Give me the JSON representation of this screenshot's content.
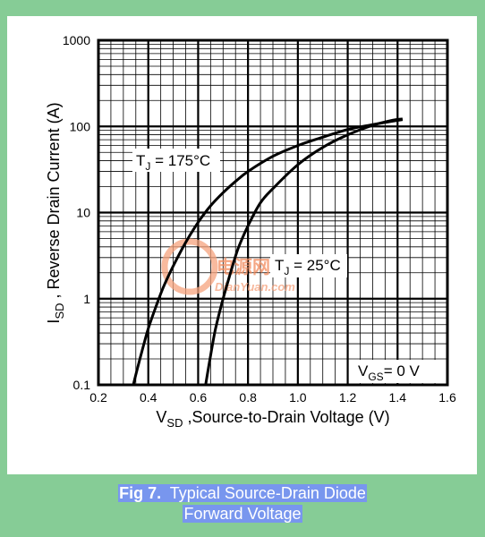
{
  "chart_data": {
    "type": "line",
    "x_scale": "linear",
    "y_scale": "log",
    "xlim": [
      0.2,
      1.6
    ],
    "ylim": [
      0.1,
      1000
    ],
    "x_ticks": [
      "0.2",
      "0.4",
      "0.6",
      "0.8",
      "1.0",
      "1.2",
      "1.4",
      "1.6"
    ],
    "y_ticks": [
      "0.1",
      "1",
      "10",
      "100",
      "1000"
    ],
    "xlabel": {
      "main": "V",
      "sub": "SD",
      "rest": " ,Source-to-Drain Voltage (V)"
    },
    "ylabel": {
      "main": "I",
      "sub": "SD",
      "rest": " , Reverse Drain Current (A)"
    },
    "grid": true,
    "series": [
      {
        "name": {
          "main": "T",
          "sub": "J",
          "rest": " = 175°C"
        },
        "x": [
          0.34,
          0.36,
          0.38,
          0.4,
          0.43,
          0.46,
          0.5,
          0.55,
          0.6,
          0.65,
          0.7,
          0.75,
          0.8,
          0.9,
          1.0,
          1.1,
          1.2,
          1.3,
          1.38,
          1.42
        ],
        "y": [
          0.1,
          0.17,
          0.28,
          0.45,
          0.8,
          1.35,
          2.4,
          4.5,
          7.7,
          12,
          17,
          23,
          30,
          45,
          60,
          75,
          92,
          105,
          115,
          120
        ]
      },
      {
        "name": {
          "main": "T",
          "sub": "J",
          "rest": " = 25°C"
        },
        "x": [
          0.63,
          0.65,
          0.67,
          0.7,
          0.73,
          0.76,
          0.8,
          0.85,
          0.9,
          1.0,
          1.1,
          1.2,
          1.3,
          1.38,
          1.42
        ],
        "y": [
          0.1,
          0.22,
          0.45,
          1.0,
          2.0,
          3.8,
          7.0,
          13,
          19,
          36,
          57,
          80,
          103,
          118,
          122
        ]
      }
    ],
    "annotations": {
      "vgs": {
        "main": "V",
        "sub": "GS",
        "rest": "= 0 V"
      }
    }
  },
  "watermark": {
    "line1": "电源网",
    "line2": "DianYuan.com"
  },
  "caption": {
    "fig_num": "Fig 7.",
    "line1": "Typical Source-Drain Diode",
    "line2": "Forward Voltage"
  },
  "colors": {
    "background": "#86cc96",
    "panel": "#ffffff",
    "ink": "#000000",
    "caption_highlight": "#7896ee",
    "watermark": "#f28a5c"
  }
}
